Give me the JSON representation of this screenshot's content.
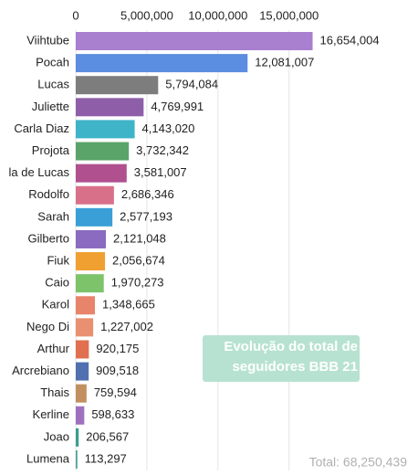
{
  "chart_data": {
    "type": "bar",
    "orientation": "horizontal",
    "categories": [
      "Viihtube",
      "Pocah",
      "Lucas",
      "Juliette",
      "Carla Diaz",
      "Projota",
      "la de Lucas",
      "Rodolfo",
      "Sarah",
      "Gilberto",
      "Fiuk",
      "Caio",
      "Karol",
      "Nego Di",
      "Arthur",
      "Arcrebiano",
      "Thais",
      "Kerline",
      "Joao",
      "Lumena"
    ],
    "values": [
      16654004,
      12081007,
      5794084,
      4769991,
      4143020,
      3732342,
      3581007,
      2686346,
      2577193,
      2121048,
      2056674,
      1970273,
      1348665,
      1227002,
      920175,
      909518,
      759594,
      598633,
      206567,
      113297
    ],
    "value_labels": [
      "16,654,004",
      "12,081,007",
      "5,794,084",
      "4,769,991",
      "4,143,020",
      "3,732,342",
      "3,581,007",
      "2,686,346",
      "2,577,193",
      "2,121,048",
      "2,056,674",
      "1,970,273",
      "1,348,665",
      "1,227,002",
      "920,175",
      "909,518",
      "759,594",
      "598,633",
      "206,567",
      "113,297"
    ],
    "colors": [
      "#a97fd0",
      "#5b8de0",
      "#7d7d7d",
      "#8e5fa8",
      "#3fb3c8",
      "#5aa46a",
      "#b0508f",
      "#d9708a",
      "#3a9fd6",
      "#8a6bbf",
      "#f0a030",
      "#7cc36a",
      "#e8846a",
      "#e89070",
      "#e07050",
      "#5070b0",
      "#c09060",
      "#a070c0",
      "#3a9f8f",
      "#4aa0a0"
    ],
    "xlim": [
      0,
      24000000
    ],
    "xticks": [
      0,
      {
        "value": 5000000,
        "label": "5,000,000"
      },
      {
        "value": 10000000,
        "label": "10,000,000"
      },
      {
        "value": 15000000,
        "label": "15,000,000"
      }
    ],
    "grid": true,
    "annotation": "Evolução do total de seguidores BBB 21",
    "total_label": "Total: 68,250,439"
  }
}
